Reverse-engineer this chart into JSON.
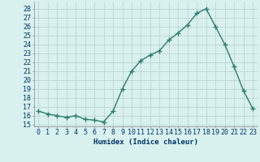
{
  "x": [
    0,
    1,
    2,
    3,
    4,
    5,
    6,
    7,
    8,
    9,
    10,
    11,
    12,
    13,
    14,
    15,
    16,
    17,
    18,
    19,
    20,
    21,
    22,
    23
  ],
  "y": [
    16.5,
    16.2,
    16.0,
    15.8,
    16.0,
    15.6,
    15.5,
    15.3,
    16.5,
    19.0,
    21.0,
    22.2,
    22.8,
    23.3,
    24.5,
    25.3,
    26.2,
    27.5,
    28.0,
    26.0,
    24.0,
    21.5,
    18.8,
    16.8
  ],
  "line_color": "#2d7d6d",
  "marker": "+",
  "marker_size": 4,
  "bg_color": "#d8f0ee",
  "grid_color": "#b8cece",
  "xlabel": "Humidex (Indice chaleur)",
  "ylabel_ticks": [
    15,
    16,
    17,
    18,
    19,
    20,
    21,
    22,
    23,
    24,
    25,
    26,
    27,
    28
  ],
  "ylim": [
    14.8,
    28.8
  ],
  "xlim": [
    -0.5,
    23.5
  ],
  "xlabel_fontsize": 6.5,
  "tick_fontsize": 6.0,
  "label_color": "#003366",
  "linewidth": 1.0
}
